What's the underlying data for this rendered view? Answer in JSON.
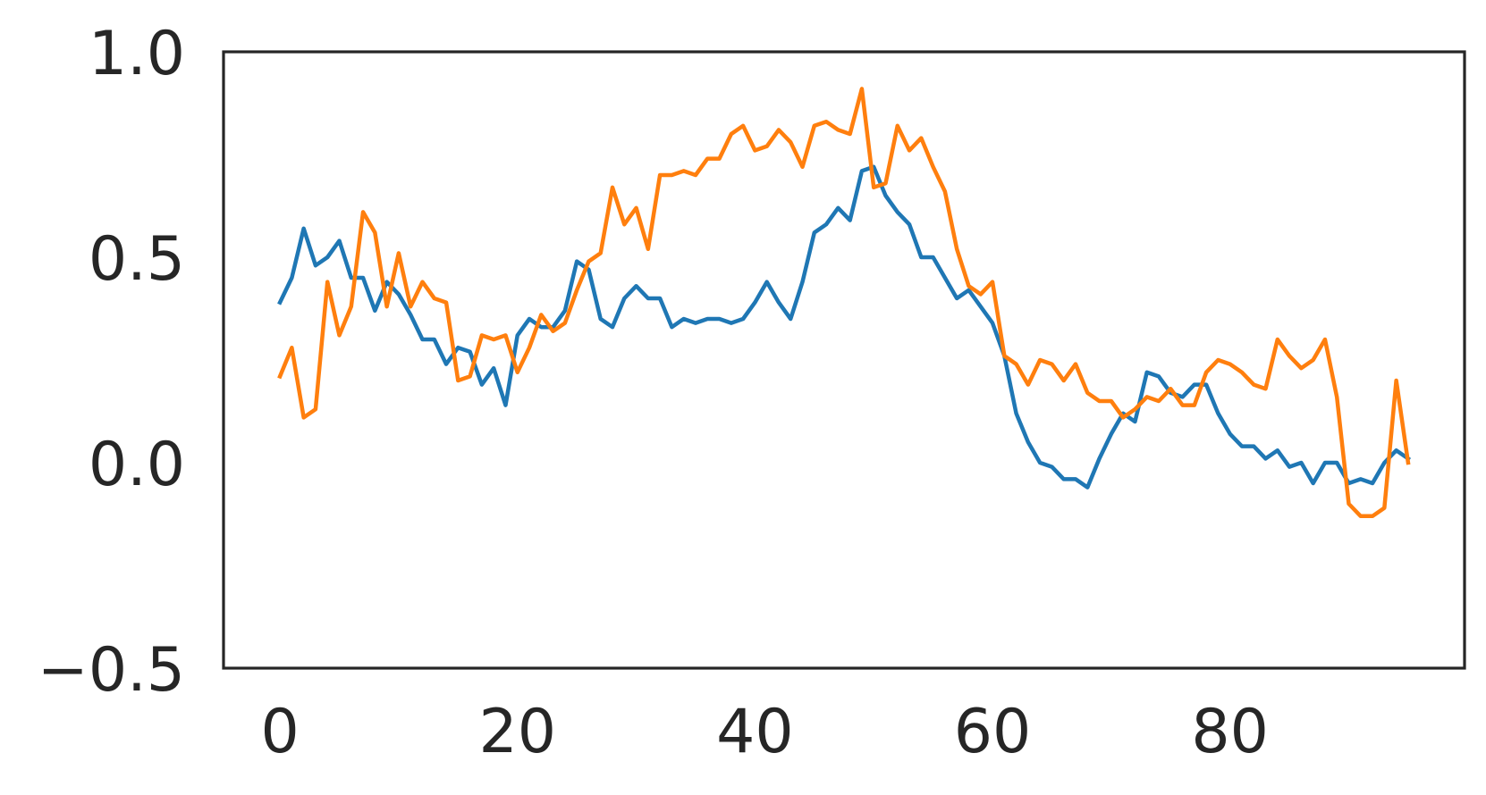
{
  "chart_data": {
    "type": "line",
    "title": "",
    "xlabel": "",
    "ylabel": "",
    "xlim": [
      -4.75,
      99.75
    ],
    "ylim": [
      -0.5,
      1.0
    ],
    "xticks": [
      0,
      20,
      40,
      60,
      80
    ],
    "xtick_labels": [
      "0",
      "20",
      "40",
      "60",
      "80"
    ],
    "yticks": [
      -0.5,
      0.0,
      0.5,
      1.0
    ],
    "ytick_labels": [
      "−0.5",
      "0.0",
      "0.5",
      "1.0"
    ],
    "grid": false,
    "legend": "none",
    "series": [
      {
        "color": "#1f77b4",
        "x": [
          0,
          1,
          2,
          3,
          4,
          5,
          6,
          7,
          8,
          9,
          10,
          11,
          12,
          13,
          14,
          15,
          16,
          17,
          18,
          19,
          20,
          21,
          22,
          23,
          24,
          25,
          26,
          27,
          28,
          29,
          30,
          31,
          32,
          33,
          34,
          35,
          36,
          37,
          38,
          39,
          40,
          41,
          42,
          43,
          44,
          45,
          46,
          47,
          48,
          49,
          50,
          51,
          52,
          53,
          54,
          55,
          56,
          57,
          58,
          59,
          60,
          61,
          62,
          63,
          64,
          65,
          66,
          67,
          68,
          69,
          70,
          71,
          72,
          73,
          74,
          75,
          76,
          77,
          78,
          79,
          80,
          81,
          82,
          83,
          84,
          85,
          86,
          87,
          88,
          89,
          90,
          91,
          92,
          93,
          94,
          95
        ],
        "y": [
          0.39,
          0.45,
          0.57,
          0.48,
          0.5,
          0.54,
          0.45,
          0.45,
          0.37,
          0.44,
          0.41,
          0.36,
          0.3,
          0.3,
          0.24,
          0.28,
          0.27,
          0.19,
          0.23,
          0.14,
          0.31,
          0.35,
          0.33,
          0.33,
          0.37,
          0.49,
          0.47,
          0.35,
          0.33,
          0.4,
          0.43,
          0.4,
          0.4,
          0.33,
          0.35,
          0.34,
          0.35,
          0.35,
          0.34,
          0.35,
          0.39,
          0.44,
          0.39,
          0.35,
          0.44,
          0.56,
          0.58,
          0.62,
          0.59,
          0.71,
          0.72,
          0.65,
          0.61,
          0.58,
          0.5,
          0.5,
          0.45,
          0.4,
          0.42,
          0.38,
          0.34,
          0.26,
          0.12,
          0.05,
          0.0,
          -0.01,
          -0.04,
          -0.04,
          -0.06,
          0.01,
          0.07,
          0.12,
          0.1,
          0.22,
          0.21,
          0.17,
          0.16,
          0.19,
          0.19,
          0.12,
          0.07,
          0.04,
          0.04,
          0.01,
          0.03,
          -0.01,
          0.0,
          -0.05,
          0.0,
          0.0,
          -0.05,
          -0.04,
          -0.05,
          0.0,
          0.03,
          0.01
        ]
      },
      {
        "color": "#ff7f0e",
        "x": [
          0,
          1,
          2,
          3,
          4,
          5,
          6,
          7,
          8,
          9,
          10,
          11,
          12,
          13,
          14,
          15,
          16,
          17,
          18,
          19,
          20,
          21,
          22,
          23,
          24,
          25,
          26,
          27,
          28,
          29,
          30,
          31,
          32,
          33,
          34,
          35,
          36,
          37,
          38,
          39,
          40,
          41,
          42,
          43,
          44,
          45,
          46,
          47,
          48,
          49,
          50,
          51,
          52,
          53,
          54,
          55,
          56,
          57,
          58,
          59,
          60,
          61,
          62,
          63,
          64,
          65,
          66,
          67,
          68,
          69,
          70,
          71,
          72,
          73,
          74,
          75,
          76,
          77,
          78,
          79,
          80,
          81,
          82,
          83,
          84,
          85,
          86,
          87,
          88,
          89,
          90,
          91,
          92,
          93,
          94,
          95
        ],
        "y": [
          0.21,
          0.28,
          0.11,
          0.13,
          0.44,
          0.31,
          0.38,
          0.61,
          0.56,
          0.38,
          0.51,
          0.38,
          0.44,
          0.4,
          0.39,
          0.2,
          0.21,
          0.31,
          0.3,
          0.31,
          0.22,
          0.28,
          0.36,
          0.32,
          0.34,
          0.42,
          0.49,
          0.51,
          0.67,
          0.58,
          0.62,
          0.52,
          0.7,
          0.7,
          0.71,
          0.7,
          0.74,
          0.74,
          0.8,
          0.82,
          0.76,
          0.77,
          0.81,
          0.78,
          0.72,
          0.82,
          0.83,
          0.81,
          0.8,
          0.91,
          0.67,
          0.68,
          0.82,
          0.76,
          0.79,
          0.72,
          0.66,
          0.52,
          0.43,
          0.41,
          0.44,
          0.26,
          0.24,
          0.19,
          0.25,
          0.24,
          0.2,
          0.24,
          0.17,
          0.15,
          0.15,
          0.11,
          0.13,
          0.16,
          0.15,
          0.18,
          0.14,
          0.14,
          0.22,
          0.25,
          0.24,
          0.22,
          0.19,
          0.18,
          0.3,
          0.26,
          0.23,
          0.25,
          0.3,
          0.16,
          -0.1,
          -0.13,
          -0.13,
          -0.11,
          0.2,
          0.0
        ]
      }
    ]
  }
}
